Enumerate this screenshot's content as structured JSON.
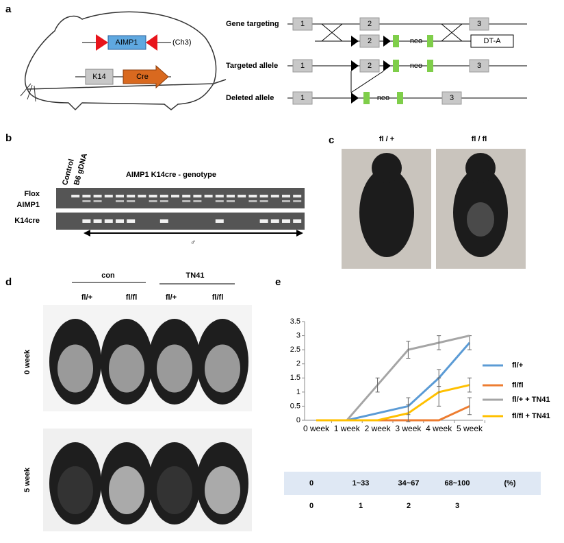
{
  "panels": {
    "a": {
      "label": "a",
      "construct": {
        "gene": "AIMP1",
        "chromosome": "(Ch3)",
        "promoter": "K14",
        "recombinase": "Cre"
      },
      "gene_targeting": {
        "label": "Gene targeting",
        "wild_type": [
          "1",
          "2",
          "3"
        ],
        "vector": [
          "2",
          "neo",
          "DT-A"
        ]
      },
      "targeted_allele": {
        "label": "Targeted allele",
        "elements": [
          "1",
          "2",
          "neo",
          "3"
        ]
      },
      "deleted_allele": {
        "label": "Deleted allele",
        "elements": [
          "1",
          "neo",
          "3"
        ]
      }
    },
    "b": {
      "label": "b",
      "lanes": [
        "Control",
        "B6 gDNA"
      ],
      "title": "AIMP1 K14cre - genotype",
      "flox_label": [
        "Flox",
        "AIMP1"
      ],
      "k14cre_label": "K14cre",
      "sex": "♂"
    },
    "c": {
      "label": "c",
      "columns": [
        "fl / +",
        "fl / fl"
      ]
    },
    "d": {
      "label": "d",
      "groups": [
        "con",
        "TN41"
      ],
      "genotypes": [
        "fl/+",
        "fl/fl",
        "fl/+",
        "fl/fl"
      ],
      "rows": [
        "0 week",
        "5 week"
      ]
    },
    "e": {
      "label": "e",
      "score_table": {
        "rows": [
          [
            "0",
            "1~33",
            "34~67",
            "68~100",
            "(%)"
          ],
          [
            0,
            1,
            2,
            3
          ]
        ]
      }
    }
  },
  "chart_data": {
    "type": "line",
    "categories": [
      "0 week",
      "1 week",
      "2 week",
      "3 week",
      "4 week",
      "5 week"
    ],
    "ylim": [
      0,
      3.5
    ],
    "yticks": [
      0,
      0.5,
      1,
      1.5,
      2,
      2.5,
      3,
      3.5
    ],
    "legend": "right",
    "series": [
      {
        "name": "fl/+",
        "color": "#5b9bd5",
        "values": [
          0,
          0,
          0.25,
          0.5,
          1.5,
          2.75
        ],
        "errors": [
          null,
          null,
          null,
          0.3,
          0.3,
          0.25
        ]
      },
      {
        "name": "fl/fl",
        "color": "#ed7d31",
        "values": [
          0,
          0,
          0,
          0,
          0,
          0.5
        ],
        "errors": [
          null,
          null,
          null,
          null,
          null,
          0.3
        ]
      },
      {
        "name": "fl/+ + TN41",
        "color": "#a5a5a5",
        "values": [
          0,
          0,
          1.25,
          2.5,
          2.75,
          3
        ],
        "errors": [
          null,
          null,
          0.25,
          0.3,
          0.25,
          null
        ]
      },
      {
        "name": "fl/fl + TN41",
        "color": "#ffc000",
        "values": [
          0,
          0,
          0,
          0.25,
          1,
          1.25
        ],
        "errors": [
          null,
          null,
          null,
          0.3,
          0.5,
          0.25
        ]
      }
    ]
  }
}
